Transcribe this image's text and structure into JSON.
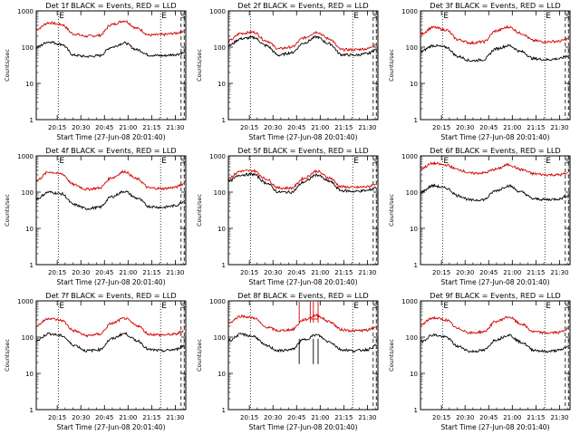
{
  "figure": {
    "width": 640,
    "height": 480
  },
  "panel_common": {
    "title_suffix": " BLACK = Events, RED = LLD",
    "ylabel": "Counts/sec",
    "xlabel": "Start Time (27-Jun-08 20:01:40)",
    "x_ticks": [
      "20:15",
      "20:30",
      "20:45",
      "21:00",
      "21:15",
      "21:30"
    ],
    "y_ticks": [
      "1",
      "10",
      "100",
      "1000"
    ],
    "marker_letter": "E",
    "edge_marker": "S"
  },
  "chart_data": [
    {
      "type": "line",
      "panel": "Det 1f",
      "title": "Det 1f BLACK = Events, RED = LLD",
      "ylabel": "Counts/sec",
      "xlabel": "Start Time (27-Jun-08 20:01:40)",
      "yscale": "log",
      "ylim": [
        1,
        1000
      ],
      "xlim_minutes": [
        0,
        95
      ],
      "x_minutes": [
        0,
        8,
        16,
        24,
        32,
        40,
        48,
        56,
        64,
        72,
        80,
        88,
        94
      ],
      "series": [
        {
          "name": "LLD (red)",
          "color": "#d40000",
          "values": [
            310,
            470,
            420,
            230,
            200,
            210,
            420,
            530,
            330,
            215,
            220,
            240,
            280
          ]
        },
        {
          "name": "Events (black)",
          "color": "#000000",
          "values": [
            100,
            140,
            120,
            60,
            55,
            58,
            100,
            130,
            85,
            60,
            58,
            62,
            70
          ]
        }
      ],
      "dotted_markers_minutes": [
        14,
        79
      ],
      "dashed_markers_minutes": [
        92,
        94
      ],
      "e_markers_minutes": [
        14,
        79
      ]
    },
    {
      "type": "line",
      "panel": "Det 2f",
      "title": "Det 2f BLACK = Events, RED = LLD",
      "ylabel": "Counts/sec",
      "xlabel": "Start Time (27-Jun-08 20:01:40)",
      "yscale": "log",
      "ylim": [
        1,
        1000
      ],
      "xlim_minutes": [
        0,
        95
      ],
      "x_minutes": [
        0,
        8,
        16,
        24,
        32,
        40,
        48,
        56,
        64,
        72,
        80,
        88,
        94
      ],
      "series": [
        {
          "name": "LLD (red)",
          "color": "#d40000",
          "values": [
            150,
            240,
            260,
            150,
            90,
            100,
            180,
            260,
            170,
            85,
            85,
            90,
            120
          ]
        },
        {
          "name": "Events (black)",
          "color": "#000000",
          "values": [
            110,
            170,
            185,
            110,
            60,
            70,
            130,
            190,
            125,
            62,
            60,
            65,
            85
          ]
        }
      ],
      "dotted_markers_minutes": [
        14,
        79
      ],
      "dashed_markers_minutes": [
        92,
        94
      ],
      "e_markers_minutes": [
        79
      ]
    },
    {
      "type": "line",
      "panel": "Det 3f",
      "title": "Det 3f BLACK = Events, RED = LLD",
      "ylabel": "Counts/sec",
      "xlabel": "Start Time (27-Jun-08 20:01:40)",
      "yscale": "log",
      "ylim": [
        1,
        1000
      ],
      "xlim_minutes": [
        0,
        95
      ],
      "x_minutes": [
        0,
        8,
        16,
        24,
        32,
        40,
        48,
        56,
        64,
        72,
        80,
        88,
        94
      ],
      "series": [
        {
          "name": "LLD (red)",
          "color": "#d40000",
          "values": [
            230,
            350,
            300,
            160,
            130,
            140,
            280,
            360,
            240,
            150,
            140,
            145,
            170
          ]
        },
        {
          "name": "Events (black)",
          "color": "#000000",
          "values": [
            75,
            110,
            100,
            55,
            42,
            45,
            90,
            110,
            75,
            48,
            45,
            48,
            58
          ]
        }
      ],
      "dotted_markers_minutes": [
        14,
        79
      ],
      "dashed_markers_minutes": [
        92,
        94
      ],
      "e_markers_minutes": [
        14,
        79
      ]
    },
    {
      "type": "line",
      "panel": "Det 4f",
      "title": "Det 4f BLACK = Events, RED = LLD",
      "ylabel": "Counts/sec",
      "xlabel": "Start Time (27-Jun-08 20:01:40)",
      "yscale": "log",
      "ylim": [
        1,
        1000
      ],
      "xlim_minutes": [
        0,
        95
      ],
      "x_minutes": [
        0,
        8,
        16,
        24,
        32,
        40,
        48,
        56,
        64,
        72,
        80,
        88,
        94
      ],
      "series": [
        {
          "name": "LLD (red)",
          "color": "#d40000",
          "values": [
            210,
            360,
            320,
            160,
            120,
            130,
            250,
            370,
            230,
            130,
            125,
            135,
            170
          ]
        },
        {
          "name": "Events (black)",
          "color": "#000000",
          "values": [
            65,
            100,
            90,
            45,
            35,
            38,
            75,
            105,
            68,
            40,
            38,
            42,
            55
          ]
        }
      ],
      "dotted_markers_minutes": [
        14,
        79
      ],
      "dashed_markers_minutes": [
        92,
        94
      ],
      "e_markers_minutes": [
        14,
        79
      ]
    },
    {
      "type": "line",
      "panel": "Det 5f",
      "title": "Det 5f BLACK = Events, RED = LLD",
      "ylabel": "Counts/sec",
      "xlabel": "Start Time (27-Jun-08 20:01:40)",
      "yscale": "log",
      "ylim": [
        1,
        1000
      ],
      "xlim_minutes": [
        0,
        95
      ],
      "x_minutes": [
        0,
        8,
        16,
        24,
        32,
        40,
        48,
        56,
        64,
        72,
        80,
        88,
        94
      ],
      "series": [
        {
          "name": "LLD (red)",
          "color": "#d40000",
          "values": [
            250,
            380,
            390,
            230,
            130,
            130,
            240,
            380,
            250,
            140,
            135,
            140,
            170
          ]
        },
        {
          "name": "Events (black)",
          "color": "#000000",
          "values": [
            200,
            300,
            310,
            180,
            100,
            100,
            190,
            300,
            200,
            110,
            105,
            110,
            135
          ]
        }
      ],
      "dotted_markers_minutes": [
        14,
        79
      ],
      "dashed_markers_minutes": [
        92,
        94
      ],
      "e_markers_minutes": [
        79
      ]
    },
    {
      "type": "line",
      "panel": "Det 6f",
      "title": "Det 6f BLACK = Events, RED = LLD",
      "ylabel": "Counts/sec",
      "xlabel": "Start Time (27-Jun-08 20:01:40)",
      "yscale": "log",
      "ylim": [
        1,
        1000
      ],
      "xlim_minutes": [
        0,
        95
      ],
      "x_minutes": [
        0,
        8,
        16,
        24,
        32,
        40,
        48,
        56,
        64,
        72,
        80,
        88,
        94
      ],
      "series": [
        {
          "name": "LLD (red)",
          "color": "#d40000",
          "values": [
            450,
            620,
            560,
            420,
            330,
            340,
            430,
            570,
            420,
            320,
            300,
            300,
            330
          ]
        },
        {
          "name": "Events (black)",
          "color": "#000000",
          "values": [
            100,
            150,
            130,
            80,
            60,
            62,
            110,
            150,
            100,
            65,
            62,
            65,
            80
          ]
        }
      ],
      "dotted_markers_minutes": [
        14,
        79
      ],
      "dashed_markers_minutes": [
        92,
        94
      ],
      "e_markers_minutes": [
        14,
        79
      ]
    },
    {
      "type": "line",
      "panel": "Det 7f",
      "title": "Det 7f BLACK = Events, RED = LLD",
      "ylabel": "Counts/sec",
      "xlabel": "Start Time (27-Jun-08 20:01:40)",
      "yscale": "log",
      "ylim": [
        1,
        1000
      ],
      "xlim_minutes": [
        0,
        95
      ],
      "x_minutes": [
        0,
        8,
        16,
        24,
        32,
        40,
        48,
        56,
        64,
        72,
        80,
        88,
        94
      ],
      "series": [
        {
          "name": "LLD (red)",
          "color": "#d40000",
          "values": [
            210,
            330,
            290,
            150,
            110,
            120,
            240,
            330,
            210,
            120,
            115,
            120,
            150
          ]
        },
        {
          "name": "Events (black)",
          "color": "#000000",
          "values": [
            80,
            125,
            110,
            60,
            42,
            45,
            90,
            125,
            80,
            45,
            42,
            45,
            58
          ]
        }
      ],
      "dotted_markers_minutes": [
        14,
        79
      ],
      "dashed_markers_minutes": [
        92,
        94
      ],
      "e_markers_minutes": [
        14,
        79
      ]
    },
    {
      "type": "line",
      "panel": "Det 8f",
      "title": "Det 8f BLACK = Events, RED = LLD",
      "ylabel": "Counts/sec",
      "xlabel": "Start Time (27-Jun-08 20:01:40)",
      "yscale": "log",
      "ylim": [
        1,
        1000
      ],
      "xlim_minutes": [
        0,
        95
      ],
      "x_minutes": [
        0,
        8,
        16,
        24,
        32,
        40,
        48,
        56,
        64,
        72,
        80,
        88,
        94
      ],
      "series": [
        {
          "name": "LLD (red)",
          "color": "#d40000",
          "values": [
            250,
            380,
            340,
            190,
            150,
            160,
            300,
            400,
            270,
            160,
            150,
            155,
            190
          ]
        },
        {
          "name": "Events (black)",
          "color": "#000000",
          "values": [
            80,
            120,
            105,
            58,
            42,
            45,
            85,
            115,
            75,
            45,
            42,
            45,
            58
          ]
        }
      ],
      "red_spikes_minutes": [
        45,
        52,
        54,
        57
      ],
      "black_dips_minutes": [
        45,
        54,
        57
      ],
      "dotted_markers_minutes": [
        14,
        79
      ],
      "dashed_markers_minutes": [
        92,
        94
      ],
      "e_markers_minutes": [
        79
      ]
    },
    {
      "type": "line",
      "panel": "Det 9f",
      "title": "Det 9f BLACK = Events, RED = LLD",
      "ylabel": "Counts/sec",
      "xlabel": "Start Time (27-Jun-08 20:01:40)",
      "yscale": "log",
      "ylim": [
        1,
        1000
      ],
      "xlim_minutes": [
        0,
        95
      ],
      "x_minutes": [
        0,
        8,
        16,
        24,
        32,
        40,
        48,
        56,
        64,
        72,
        80,
        88,
        94
      ],
      "series": [
        {
          "name": "LLD (red)",
          "color": "#d40000",
          "values": [
            220,
            340,
            300,
            170,
            130,
            140,
            270,
            360,
            230,
            140,
            130,
            135,
            170
          ]
        },
        {
          "name": "Events (black)",
          "color": "#000000",
          "values": [
            75,
            115,
            100,
            55,
            40,
            43,
            85,
            115,
            72,
            44,
            40,
            43,
            55
          ]
        }
      ],
      "dotted_markers_minutes": [
        14,
        79
      ],
      "dashed_markers_minutes": [
        92,
        94
      ],
      "e_markers_minutes": [
        14,
        79
      ]
    }
  ]
}
